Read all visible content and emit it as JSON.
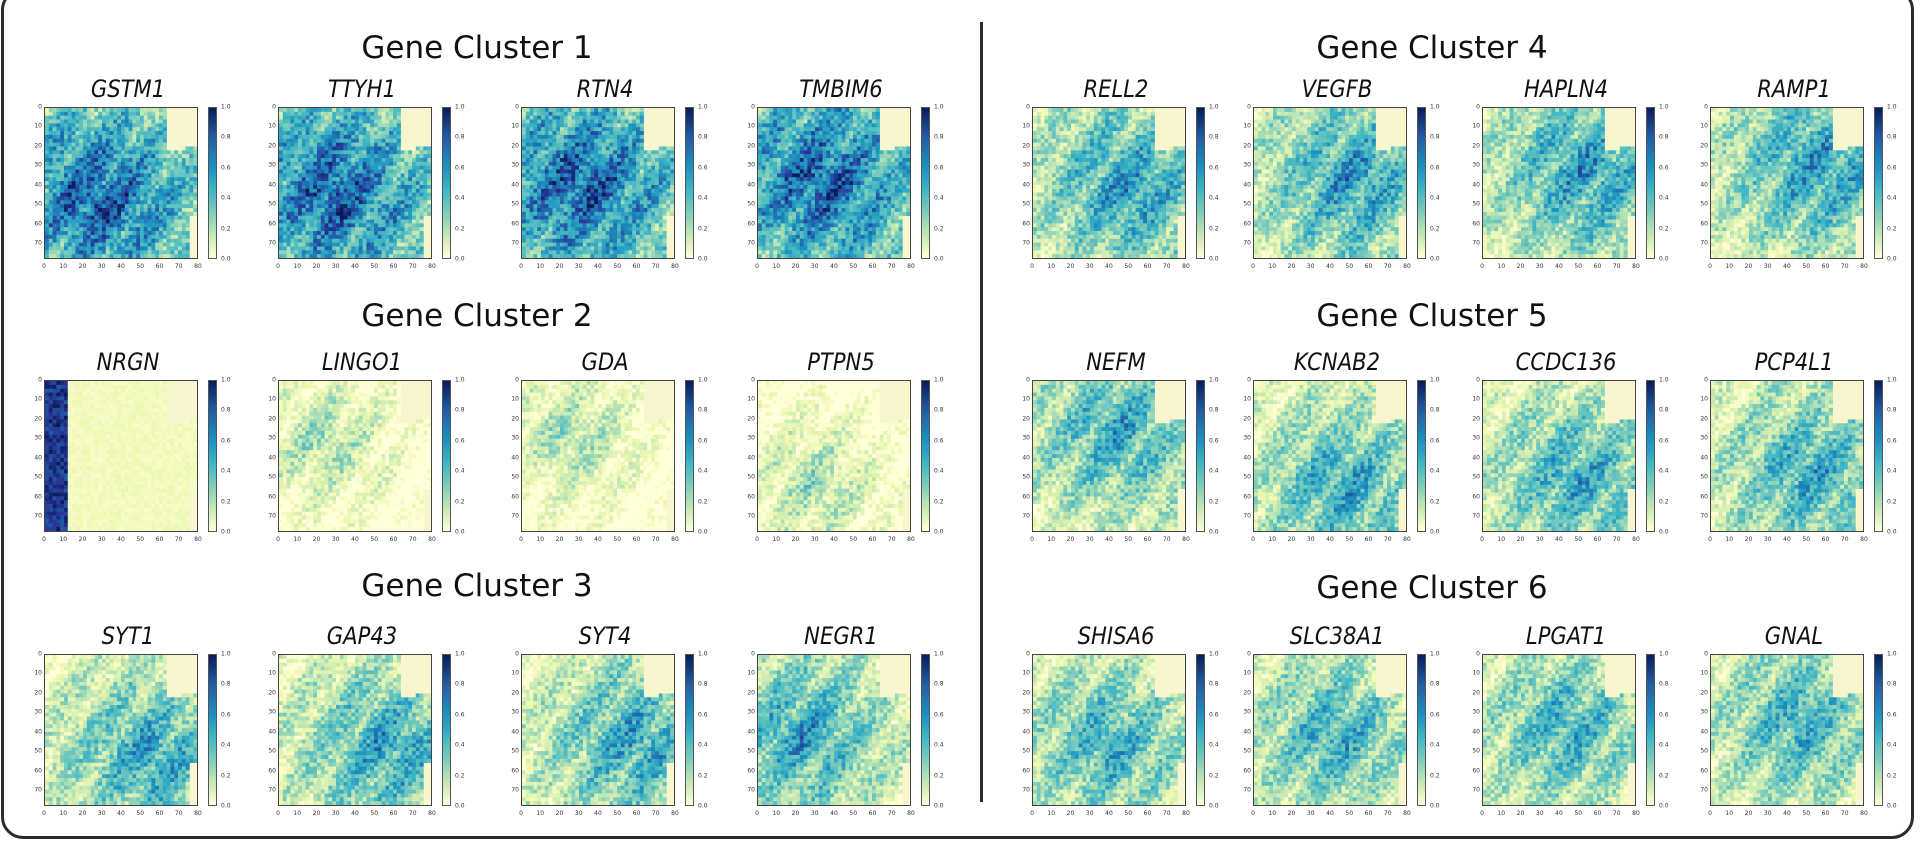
{
  "figure": {
    "clusters": [
      {
        "title": "Gene Cluster 1",
        "genes": [
          "GSTM1",
          "TTYH1",
          "RTN4",
          "TMBIM6"
        ]
      },
      {
        "title": "Gene Cluster 2",
        "genes": [
          "NRGN",
          "LINGO1",
          "GDA",
          "PTPN5"
        ]
      },
      {
        "title": "Gene Cluster 3",
        "genes": [
          "SYT1",
          "GAP43",
          "SYT4",
          "NEGR1"
        ]
      },
      {
        "title": "Gene Cluster 4",
        "genes": [
          "RELL2",
          "VEGFB",
          "HAPLN4",
          "RAMP1"
        ]
      },
      {
        "title": "Gene Cluster 5",
        "genes": [
          "NEFM",
          "KCNAB2",
          "CCDC136",
          "PCP4L1"
        ]
      },
      {
        "title": "Gene Cluster 6",
        "genes": [
          "SHISA6",
          "SLC38A1",
          "LPGAT1",
          "GNAL"
        ]
      }
    ]
  },
  "chart_data": {
    "type": "heatmap",
    "colormap": "YlGnBu",
    "x_ticks": [
      "0",
      "10",
      "20",
      "30",
      "40",
      "50",
      "60",
      "70",
      "80"
    ],
    "y_ticks": [
      "0",
      "10",
      "20",
      "30",
      "40",
      "50",
      "60",
      "70"
    ],
    "colorbar_ticks": [
      "1.0",
      "0.8",
      "0.6",
      "0.4",
      "0.2",
      "0.0"
    ],
    "colorbar_range": [
      0.0,
      1.0
    ],
    "xlim": [
      0,
      80
    ],
    "ylim": [
      78,
      0
    ],
    "colors": {
      "low": "#ffffd9",
      "high": "#081d58"
    },
    "cluster_mean_expression": {
      "Gene Cluster 1": 0.62,
      "Gene Cluster 2": 0.12,
      "Gene Cluster 3": 0.42,
      "Gene Cluster 4": 0.45,
      "Gene Cluster 5": 0.4,
      "Gene Cluster 6": 0.38
    }
  }
}
